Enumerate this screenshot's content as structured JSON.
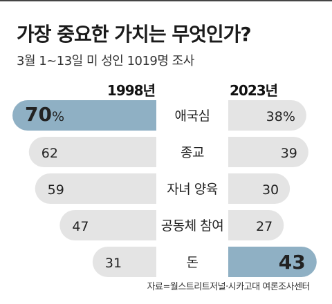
{
  "title": "가장 중요한 가치는 무엇인가?",
  "subtitle": "3월 1~13일 미 성인 1019명 조사",
  "source": "자료=월스트리트저널·시카고대 여론조사센터",
  "colors": {
    "bar": "#e4e4e4",
    "highlight": "#8fb0c4",
    "text": "#222222"
  },
  "chart_data": {
    "type": "bar",
    "orientation": "horizontal-butterfly",
    "categories": [
      "애국심",
      "종교",
      "자녀 양육",
      "공동체 참여",
      "돈"
    ],
    "series": [
      {
        "name": "1998년",
        "values": [
          70,
          62,
          59,
          47,
          31
        ],
        "labels": [
          "70%",
          "62",
          "59",
          "47",
          "31"
        ],
        "highlight_index": 0
      },
      {
        "name": "2023년",
        "values": [
          38,
          39,
          30,
          27,
          43
        ],
        "labels": [
          "38%",
          "39",
          "30",
          "27",
          "43"
        ],
        "highlight_index": 4
      }
    ],
    "unit": "%",
    "xlim": [
      0,
      70
    ]
  }
}
